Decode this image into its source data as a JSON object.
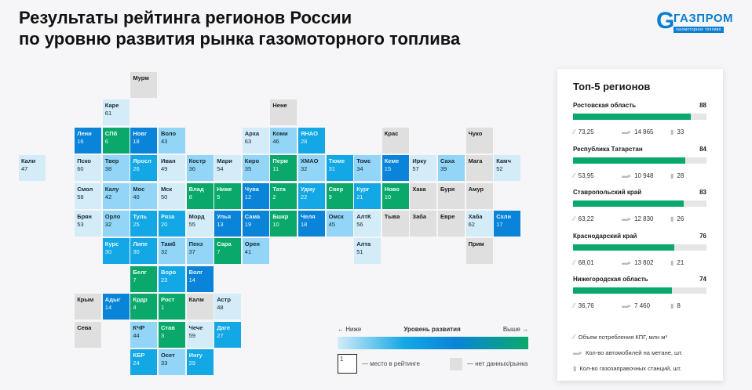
{
  "title": {
    "line1": "Результаты рейтинга регионов России",
    "line2": "по уровню развития рынка газомоторного топлива"
  },
  "logo": {
    "text": "ГАЗПРОМ",
    "subtext": "газомоторное топливо"
  },
  "colors": {
    "green": "#0aa96b",
    "dark_blue": "#0a84d8",
    "blue": "#13a8e5",
    "light_blue": "#92d5f6",
    "pale_blue": "#d3ecf8",
    "no_data": "#dfdfdf"
  },
  "regions": [
    {
      "abbr": "Мурм",
      "rank": null
    },
    {
      "abbr": "Каре",
      "rank": 61
    },
    {
      "abbr": "Нене",
      "rank": null
    },
    {
      "abbr": "Лени",
      "rank": 16
    },
    {
      "abbr": "СПб",
      "rank": 6
    },
    {
      "abbr": "Новг",
      "rank": 18
    },
    {
      "abbr": "Воло",
      "rank": 43
    },
    {
      "abbr": "Арха",
      "rank": 63
    },
    {
      "abbr": "Коми",
      "rank": 46
    },
    {
      "abbr": "ЯНАО",
      "rank": 28
    },
    {
      "abbr": "Крас",
      "rank": null
    },
    {
      "abbr": "Чуко",
      "rank": null
    },
    {
      "abbr": "Кали",
      "rank": 47
    },
    {
      "abbr": "Пско",
      "rank": 60
    },
    {
      "abbr": "Твер",
      "rank": 38
    },
    {
      "abbr": "Яросл",
      "rank": 26
    },
    {
      "abbr": "Иван",
      "rank": 49
    },
    {
      "abbr": "Костр",
      "rank": 36
    },
    {
      "abbr": "Мари",
      "rank": 54
    },
    {
      "abbr": "Киро",
      "rank": 35
    },
    {
      "abbr": "Перм",
      "rank": 11
    },
    {
      "abbr": "ХМАО",
      "rank": 32
    },
    {
      "abbr": "Тюме",
      "rank": 31
    },
    {
      "abbr": "Томс",
      "rank": 34
    },
    {
      "abbr": "Кеме",
      "rank": 15
    },
    {
      "abbr": "Ирку",
      "rank": 57
    },
    {
      "abbr": "Саха",
      "rank": 39
    },
    {
      "abbr": "Мага",
      "rank": null
    },
    {
      "abbr": "Камч",
      "rank": 52
    },
    {
      "abbr": "Смол",
      "rank": 58
    },
    {
      "abbr": "Калу",
      "rank": 42
    },
    {
      "abbr": "Мос",
      "rank": 40
    },
    {
      "abbr": "Мск",
      "rank": 50
    },
    {
      "abbr": "Влад",
      "rank": 8
    },
    {
      "abbr": "Ниже",
      "rank": 5
    },
    {
      "abbr": "Чува",
      "rank": 12
    },
    {
      "abbr": "Тата",
      "rank": 2
    },
    {
      "abbr": "Удму",
      "rank": 22
    },
    {
      "abbr": "Свер",
      "rank": 9
    },
    {
      "abbr": "Кург",
      "rank": 21
    },
    {
      "abbr": "Ново",
      "rank": 10
    },
    {
      "abbr": "Хака",
      "rank": null
    },
    {
      "abbr": "Буря",
      "rank": null
    },
    {
      "abbr": "Амур",
      "rank": null
    },
    {
      "abbr": "Брян",
      "rank": 53
    },
    {
      "abbr": "Орло",
      "rank": 32
    },
    {
      "abbr": "Туль",
      "rank": 25
    },
    {
      "abbr": "Рязa",
      "rank": 20
    },
    {
      "abbr": "Морд",
      "rank": 55
    },
    {
      "abbr": "Улья",
      "rank": 13
    },
    {
      "abbr": "Сама",
      "rank": 19
    },
    {
      "abbr": "Бшкр",
      "rank": 10
    },
    {
      "abbr": "Челя",
      "rank": 18
    },
    {
      "abbr": "Омск",
      "rank": 45
    },
    {
      "abbr": "АлтК",
      "rank": 56
    },
    {
      "abbr": "Тыва",
      "rank": null
    },
    {
      "abbr": "Заба",
      "rank": null
    },
    {
      "abbr": "Евре",
      "rank": null
    },
    {
      "abbr": "Хаба",
      "rank": 62
    },
    {
      "abbr": "Схлн",
      "rank": 17
    },
    {
      "abbr": "Курс",
      "rank": 30
    },
    {
      "abbr": "Липе",
      "rank": 30
    },
    {
      "abbr": "Тамб",
      "rank": 32
    },
    {
      "abbr": "Пенз",
      "rank": 37
    },
    {
      "abbr": "Сара",
      "rank": 7
    },
    {
      "abbr": "Орен",
      "rank": 41
    },
    {
      "abbr": "Алта",
      "rank": 51
    },
    {
      "abbr": "Прим",
      "rank": null
    },
    {
      "abbr": "Белг",
      "rank": 7
    },
    {
      "abbr": "Воро",
      "rank": 23
    },
    {
      "abbr": "Волг",
      "rank": 14
    },
    {
      "abbr": "Крым",
      "rank": null
    },
    {
      "abbr": "Адыг",
      "rank": 14
    },
    {
      "abbr": "Крдр",
      "rank": 4
    },
    {
      "abbr": "Рост",
      "rank": 1
    },
    {
      "abbr": "Калм",
      "rank": null
    },
    {
      "abbr": "Астр",
      "rank": 48
    },
    {
      "abbr": "Сева",
      "rank": null
    },
    {
      "abbr": "КЧР",
      "rank": 44
    },
    {
      "abbr": "Став",
      "rank": 3
    },
    {
      "abbr": "Чече",
      "rank": 59
    },
    {
      "abbr": "Даге",
      "rank": 27
    },
    {
      "abbr": "КБР",
      "rank": 24
    },
    {
      "abbr": "Осет",
      "rank": 33
    },
    {
      "abbr": "Ингу",
      "rank": 29
    }
  ],
  "legend": {
    "lower": "← Ниже",
    "title": "Уровень развития",
    "higher": "Выше →",
    "sample_rank": "1",
    "rank_label": "— место в рейтинге",
    "no_data_label": "— нет данных/рынка"
  },
  "top5": {
    "title": "Топ-5 регионов",
    "items": [
      {
        "name": "Ростовская область",
        "score": "88",
        "value": 88,
        "cng": "73,25",
        "cars": "14 865",
        "stations": "33"
      },
      {
        "name": "Республика Татарстан",
        "score": "84",
        "value": 84,
        "cng": "53,95",
        "cars": "10 948",
        "stations": "28"
      },
      {
        "name": "Ставропольский край",
        "score": "83",
        "value": 83,
        "cng": "63,22",
        "cars": "12 830",
        "stations": "26"
      },
      {
        "name": "Краснодарский край",
        "score": "76",
        "value": 76,
        "cng": "68,01",
        "cars": "13 802",
        "stations": "21"
      },
      {
        "name": "Нижегородская область",
        "score": "74",
        "value": 74,
        "cng": "36,76",
        "cars": "7 460",
        "stations": "8"
      }
    ],
    "keys": {
      "cng": "Объем потребления КПГ, млн м³",
      "cars": "Кол-во автомобилей на метане, шт.",
      "stations": "Кол-во газозаправочных станций, шт."
    }
  }
}
